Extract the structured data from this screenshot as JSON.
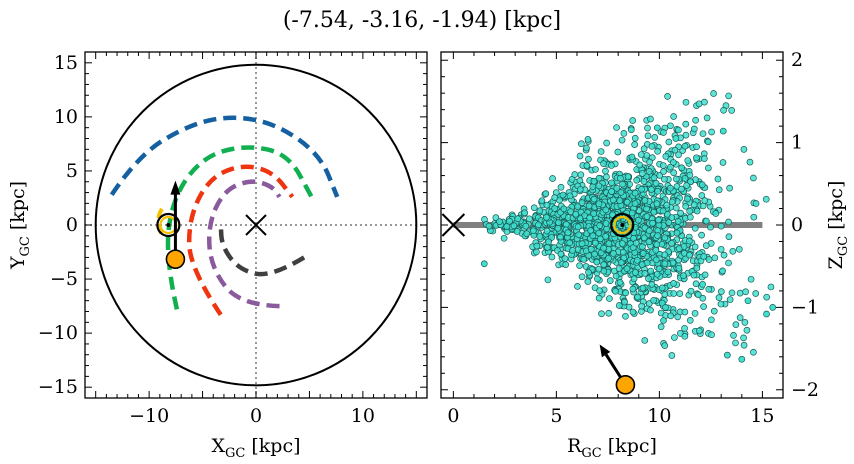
{
  "figure": {
    "title": "(-7.54, -3.16, -1.94) [kpc]"
  },
  "chart_data": [
    {
      "type": "line",
      "panel": "left",
      "xlabel_main": "X",
      "xlabel_sub": "GC",
      "xlabel_unit": " [kpc]",
      "ylabel_main": "Y",
      "ylabel_sub": "GC",
      "ylabel_unit": " [kpc]",
      "xlim": [
        -16,
        16
      ],
      "ylim": [
        -16,
        16
      ],
      "xticks": [
        -10,
        0,
        10
      ],
      "yticks": [
        -15,
        -10,
        -5,
        0,
        5,
        10,
        15
      ],
      "x_tick_labels": [
        "−10",
        "0",
        "10"
      ],
      "y_tick_labels": [
        "−15",
        "−10",
        "−5",
        "0",
        "5",
        "10",
        "15"
      ],
      "grid": false,
      "boundary_circle_radius": 15,
      "galactic_center": {
        "x": 0,
        "y": 0,
        "marker": "x"
      },
      "sun": {
        "x": -8.2,
        "y": 0,
        "marker": "sun-symbol"
      },
      "star": {
        "x": -7.54,
        "y": -3.16,
        "color": "#ffa500"
      },
      "velocity_arrow": {
        "x0": -7.54,
        "y0": -3.16,
        "x1": -7.54,
        "y1": 4.1,
        "color": "#000000"
      },
      "series": [
        {
          "color": "#1460a0",
          "radius": 10.0,
          "theta_start_deg": 150,
          "theta_end_deg": 0,
          "y_shift": 0,
          "x_end": 7.6,
          "y_end": 2.6
        },
        {
          "color": "#10b050",
          "radius": 7.4,
          "theta_start_deg": 220,
          "theta_end_deg": 5,
          "x_end": 5.2,
          "y_end": 2.6
        },
        {
          "color": "#ee3510",
          "radius": 5.6,
          "theta_start_deg": 230,
          "theta_end_deg": 5,
          "x_end": 3.4,
          "y_end": 2.6
        },
        {
          "color": "#8a5a9c",
          "radius": 4.2,
          "theta_start_deg": 250,
          "theta_end_deg": 5,
          "x_end": 2.2,
          "y_end": 2.6
        },
        {
          "color": "#3f3f3f",
          "radius": 2.2,
          "theta_start_deg": 280,
          "theta_end_deg": 185,
          "x_end": 4.5,
          "y_end": -3.0
        }
      ],
      "small_yellow_arc": {
        "color": "#f2c000",
        "x0": -8.8,
        "y0": 1.5,
        "x1": -8.6,
        "y1": -1.2
      }
    },
    {
      "type": "scatter",
      "panel": "right",
      "xlabel_main": "R",
      "xlabel_sub": "GC",
      "xlabel_unit": " [kpc]",
      "ylabel_main": "Z",
      "ylabel_sub": "GC",
      "ylabel_unit": " [kpc]",
      "xlim": [
        -0.6,
        16.0
      ],
      "ylim": [
        -2.1,
        2.1
      ],
      "xticks": [
        0,
        5,
        10,
        15
      ],
      "yticks": [
        -2,
        -1,
        0,
        1,
        2
      ],
      "x_tick_labels": [
        "0",
        "5",
        "10",
        "15"
      ],
      "y_tick_labels": [
        "−2",
        "−1",
        "0",
        "1",
        "2"
      ],
      "y_axis_side": "right",
      "grid": false,
      "disk_band": {
        "x0": 0,
        "x1": 15,
        "y": 0,
        "color": "#808080"
      },
      "galactic_center": {
        "x": 0,
        "y": 0,
        "marker": "x"
      },
      "sun": {
        "x": 8.2,
        "y": 0,
        "marker": "sun-symbol"
      },
      "star": {
        "x": 8.35,
        "y": -1.94,
        "color": "#ffa500"
      },
      "velocity_arrow": {
        "x0": 8.35,
        "y0": -1.94,
        "x1": 7.1,
        "y1": -1.45,
        "color": "#000000"
      },
      "scatter_color": "#40e0d0",
      "scatter_edge": "#1a5a55",
      "scatter_cloud": {
        "count": 1600,
        "r_min": 1.4,
        "r_max": 15.6,
        "z_spread_base": 0.05,
        "z_spread_growth": 0.065,
        "note": ""
      }
    }
  ]
}
